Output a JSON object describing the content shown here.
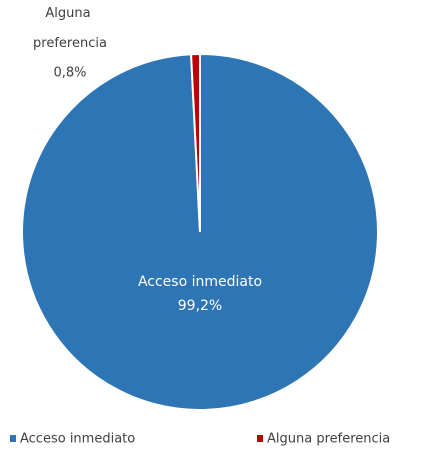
{
  "chart_data": {
    "type": "pie",
    "categories": [
      "Acceso inmediato",
      "Alguna preferencia"
    ],
    "values": [
      99.2,
      0.8
    ],
    "value_labels": [
      "99,2%",
      "0,8%"
    ],
    "colors": [
      "#2e75b6",
      "#c00000"
    ],
    "legend": "bottom"
  }
}
